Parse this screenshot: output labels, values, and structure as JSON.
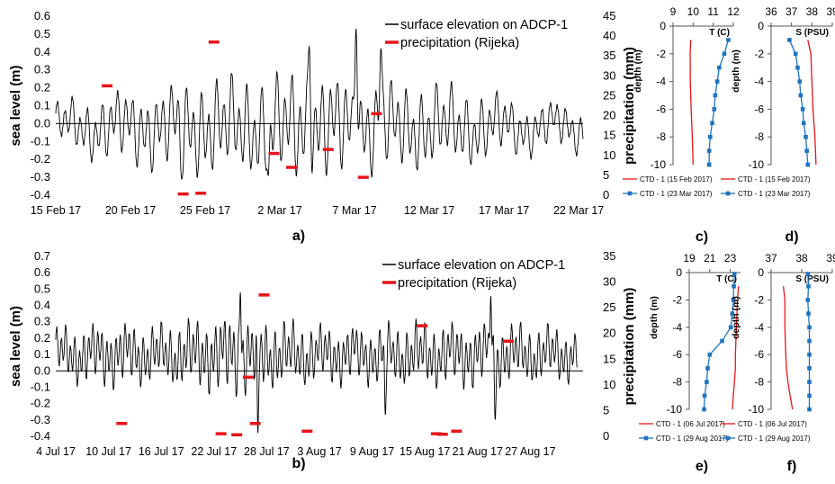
{
  "panel_labels": {
    "a": "a)",
    "b": "b)",
    "c": "c)",
    "d": "d)",
    "e": "e)",
    "f": "f)"
  },
  "colors": {
    "sea_level": "#000000",
    "precipitation": "#e8141b",
    "ctd_first": "#e8141b",
    "ctd_second": "#1f74c0"
  },
  "chart_data": [
    {
      "id": "a",
      "type": "line",
      "ylabel": "sea level (m)",
      "y2label": "precipitation (mm)",
      "ylim": [
        -0.4,
        0.6
      ],
      "y2lim": [
        0,
        45
      ],
      "yticks": [
        "-0.4",
        "-0.3",
        "-0.2",
        "-0.1",
        "0.0",
        "0.1",
        "0.2",
        "0.3",
        "0.4",
        "0.5",
        "0.6"
      ],
      "y2ticks": [
        "0",
        "5",
        "10",
        "15",
        "20",
        "25",
        "30",
        "35",
        "40",
        "45"
      ],
      "xlim_days": [
        0,
        36
      ],
      "xticks": [
        "15 Feb 17",
        "20 Feb 17",
        "25 Feb 17",
        "2 Mar 17",
        "7 Mar 17",
        "12 Mar 17",
        "17 Mar 17",
        "22 Mar 17"
      ],
      "legend": [
        "surface elevation on ADCP-1",
        "precipitation (Rijeka)"
      ],
      "legend_position": "top-right",
      "series": [
        {
          "name": "surface elevation on ADCP-1",
          "kind": "sea_level",
          "t0": 0,
          "t1": 36,
          "base": -0.02,
          "amp": 0.17,
          "envelope": [
            [
              0,
              0.6
            ],
            [
              3,
              0.9
            ],
            [
              6,
              1.1
            ],
            [
              8,
              1.2
            ],
            [
              10,
              1.4
            ],
            [
              14,
              1.4
            ],
            [
              17,
              1.6
            ],
            [
              19,
              1.5
            ],
            [
              22,
              1.3
            ],
            [
              26,
              1.2
            ],
            [
              29,
              1.0
            ],
            [
              32,
              0.7
            ],
            [
              36,
              0.6
            ]
          ],
          "extremes": [
            [
              20.5,
              0.53
            ],
            [
              17.3,
              0.43
            ],
            [
              22.2,
              0.42
            ],
            [
              8.6,
              -0.31
            ],
            [
              14.5,
              -0.29
            ]
          ]
        },
        {
          "name": "precipitation (Rijeka)",
          "kind": "precip",
          "days": [
            3.5,
            8.7,
            9.9,
            10.8,
            14.9,
            16.1,
            18.6,
            21.0,
            21.9
          ],
          "values": [
            27.5,
            0.3,
            0.5,
            38.5,
            10.5,
            7.0,
            11.5,
            4.5,
            20.5
          ]
        }
      ]
    },
    {
      "id": "b",
      "type": "line",
      "ylabel": "sea level (m)",
      "y2label": "precipitation (mm)",
      "ylim": [
        -0.4,
        0.7
      ],
      "y2lim": [
        0,
        35
      ],
      "yticks": [
        "-0.4",
        "-0.3",
        "-0.2",
        "-0.1",
        "0.0",
        "0.1",
        "0.2",
        "0.3",
        "0.4",
        "0.5",
        "0.6",
        "0.7"
      ],
      "y2ticks": [
        "0",
        "5",
        "10",
        "15",
        "20",
        "25",
        "30",
        "35"
      ],
      "xlim_days": [
        0,
        60
      ],
      "xticks": [
        "4 Jul 17",
        "10 Jul 17",
        "16 Jul 17",
        "22 Jul 17",
        "28 Jul 17",
        "3 Aug 17",
        "9 Aug 17",
        "15 Aug 17",
        "21 Aug 17",
        "27 Aug 17"
      ],
      "legend": [
        "surface elevation on ADCP-1",
        "precipitation (Rijeka)"
      ],
      "legend_position": "top-right",
      "series": [
        {
          "name": "surface elevation on ADCP-1",
          "kind": "sea_level",
          "t0": 0,
          "t1": 59.3,
          "base": 0.1,
          "amp": 0.16,
          "envelope": [
            [
              0,
              0.8
            ],
            [
              6,
              1.0
            ],
            [
              12,
              0.9
            ],
            [
              18,
              1.2
            ],
            [
              21,
              1.3
            ],
            [
              24,
              1.1
            ],
            [
              30,
              0.9
            ],
            [
              36,
              0.9
            ],
            [
              42,
              1.0
            ],
            [
              48,
              1.0
            ],
            [
              54,
              0.9
            ],
            [
              59.3,
              0.8
            ]
          ],
          "extremes": [
            [
              21.0,
              0.48
            ],
            [
              23.0,
              -0.38
            ],
            [
              37.5,
              -0.27
            ],
            [
              50.0,
              -0.3
            ],
            [
              49.5,
              0.46
            ]
          ]
        },
        {
          "name": "precipitation (Rijeka)",
          "kind": "precip",
          "days": [
            7.5,
            18.8,
            20.6,
            21.9,
            22.7,
            23.7,
            28.6,
            41.7,
            43.3,
            44.0,
            45.6,
            51.5
          ],
          "values": [
            2.5,
            0.5,
            0.3,
            11.5,
            2.5,
            27.5,
            1.0,
            21.5,
            0.5,
            0.4,
            1.0,
            18.5
          ]
        }
      ]
    },
    {
      "id": "c",
      "type": "line",
      "xlabel": "T (C)",
      "ylabel": "depth (m)",
      "xlim": [
        9,
        12
      ],
      "ylim": [
        -10,
        0
      ],
      "xticks": [
        "9",
        "10",
        "11",
        "12"
      ],
      "yticks": [
        "0",
        "-2",
        "-4",
        "-6",
        "-8",
        "-10"
      ],
      "legend": [
        "CTD - 1  (15 Feb 2017)",
        "CTD - 1  (23 Mar 2017)"
      ],
      "legend_position": "bottom",
      "series": [
        {
          "name": "CTD - 1  (15 Feb 2017)",
          "marker": "none",
          "x": [
            9.88,
            9.85,
            9.86,
            9.9,
            9.93,
            9.96,
            9.98,
            10.0
          ],
          "y": [
            -1,
            -2,
            -4,
            -6,
            -7,
            -8,
            -9,
            -10
          ]
        },
        {
          "name": "CTD - 1  (23 Mar 2017)",
          "marker": "square",
          "x": [
            11.75,
            11.55,
            11.3,
            11.2,
            11.1,
            11.05,
            10.95,
            10.85,
            10.8,
            10.8,
            10.8
          ],
          "y": [
            -1,
            -2,
            -3,
            -4,
            -5,
            -6,
            -7,
            -8,
            -9,
            -10,
            -10
          ]
        }
      ]
    },
    {
      "id": "d",
      "type": "line",
      "xlabel": "S (PSU)",
      "ylabel": "depth (m)",
      "xlim": [
        36,
        39
      ],
      "ylim": [
        -10,
        0
      ],
      "xticks": [
        "36",
        "37",
        "38",
        "39"
      ],
      "yticks": [
        "0",
        "-2",
        "-4",
        "-6",
        "-8",
        "-10"
      ],
      "legend": [
        "CTD - 1  (15 Feb 2017)",
        "CTD - 1  (23 Mar 2017)"
      ],
      "legend_position": "bottom",
      "series": [
        {
          "name": "CTD - 1  (15 Feb 2017)",
          "marker": "none",
          "x": [
            37.8,
            37.95,
            38.0,
            38.05,
            38.1,
            38.15,
            38.2
          ],
          "y": [
            -1,
            -2,
            -4,
            -6,
            -7,
            -8,
            -10
          ]
        },
        {
          "name": "CTD - 1  (23 Mar 2017)",
          "marker": "square",
          "x": [
            36.9,
            37.2,
            37.3,
            37.4,
            37.45,
            37.55,
            37.6,
            37.7,
            37.75,
            37.8,
            37.8
          ],
          "y": [
            -1,
            -2,
            -3,
            -4,
            -5,
            -6,
            -7,
            -8,
            -9,
            -10,
            -10
          ]
        }
      ]
    },
    {
      "id": "e",
      "type": "line",
      "xlabel": "T (C)",
      "ylabel": "depth (m)",
      "xlim": [
        19,
        24
      ],
      "ylim": [
        -10,
        0
      ],
      "xticks": [
        "19",
        "21",
        "23"
      ],
      "yticks": [
        "0",
        "-2",
        "-4",
        "-6",
        "-8",
        "-10"
      ],
      "legend": [
        "CTD - 1  (06 Jul 2017)",
        "CTD - 1  (29 Aug 2017)"
      ],
      "legend_position": "bottom",
      "series": [
        {
          "name": "CTD - 1  (06 Jul 2017)",
          "marker": "none",
          "x": [
            23.8,
            23.7,
            23.6,
            23.5,
            23.5,
            23.4,
            23.3,
            23.2
          ],
          "y": [
            -1,
            -2,
            -4,
            -6,
            -7,
            -8,
            -9,
            -10
          ]
        },
        {
          "name": "CTD - 1  (29 Aug 2017)",
          "marker": "square",
          "x": [
            23.4,
            23.35,
            23.3,
            23.2,
            23.05,
            22.2,
            21.0,
            20.8,
            20.7,
            20.5,
            20.45
          ],
          "y": [
            -0.1,
            -1,
            -2,
            -3,
            -4,
            -5,
            -6,
            -7,
            -8,
            -9,
            -10
          ]
        }
      ]
    },
    {
      "id": "f",
      "type": "line",
      "xlabel": "S (PSU)",
      "ylabel": "depth (m)",
      "xlim": [
        37,
        39
      ],
      "ylim": [
        -10,
        0
      ],
      "xticks": [
        "37",
        "38",
        "39"
      ],
      "yticks": [
        "0",
        "-2",
        "-4",
        "-6",
        "-8",
        "-10"
      ],
      "legend": [
        "CTD - 1  (06 Jul 2017)",
        "CTD - 1  (29 Aug 2017)"
      ],
      "legend_position": "bottom",
      "series": [
        {
          "name": "CTD - 1  (06 Jul 2017)",
          "marker": "none",
          "x": [
            37.4,
            37.45,
            37.45,
            37.48,
            37.5,
            37.55,
            37.62,
            37.7
          ],
          "y": [
            -1,
            -2,
            -4,
            -6,
            -7,
            -8,
            -9,
            -10
          ]
        },
        {
          "name": "CTD - 1  (29 Aug 2017)",
          "marker": "square",
          "x": [
            38.2,
            38.22,
            38.2,
            38.22,
            38.25,
            38.25,
            38.25,
            38.25,
            38.25,
            38.25,
            38.25
          ],
          "y": [
            -0.1,
            -1,
            -2,
            -3,
            -4,
            -5,
            -6,
            -7,
            -8,
            -9,
            -10
          ]
        }
      ]
    }
  ]
}
